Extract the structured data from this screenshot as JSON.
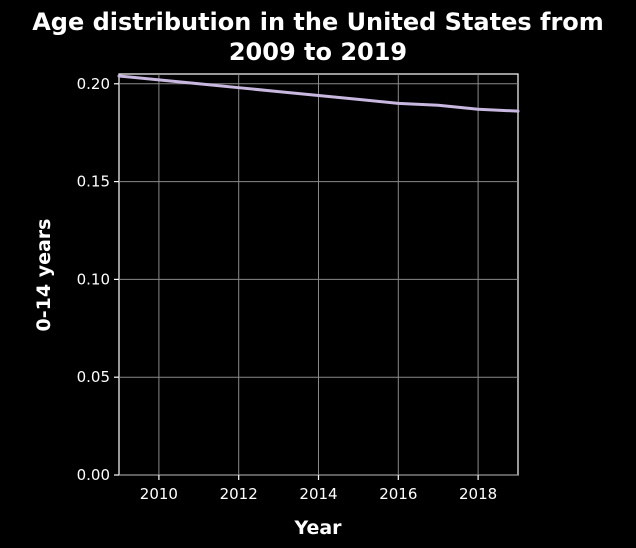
{
  "chart_data": {
    "type": "line",
    "title_lines": [
      "Age distribution in the United States from",
      "2009 to 2019"
    ],
    "xlabel": "Year",
    "ylabel": "0-14 years",
    "xlim": [
      2009,
      2019
    ],
    "ylim": [
      0.0,
      0.205
    ],
    "x_ticks": [
      2010,
      2012,
      2014,
      2016,
      2018
    ],
    "x_tick_labels": [
      "2010",
      "2012",
      "2014",
      "2016",
      "2018"
    ],
    "y_ticks": [
      0.0,
      0.05,
      0.1,
      0.15,
      0.2
    ],
    "y_tick_labels": [
      "0.00",
      "0.05",
      "0.10",
      "0.15",
      "0.20"
    ],
    "grid": true,
    "series": [
      {
        "color": "#c8b8e0",
        "x": [
          2009,
          2010,
          2011,
          2012,
          2013,
          2014,
          2015,
          2016,
          2017,
          2018,
          2019
        ],
        "values": [
          0.204,
          0.202,
          0.2,
          0.198,
          0.196,
          0.194,
          0.192,
          0.19,
          0.189,
          0.187,
          0.186
        ]
      }
    ]
  }
}
